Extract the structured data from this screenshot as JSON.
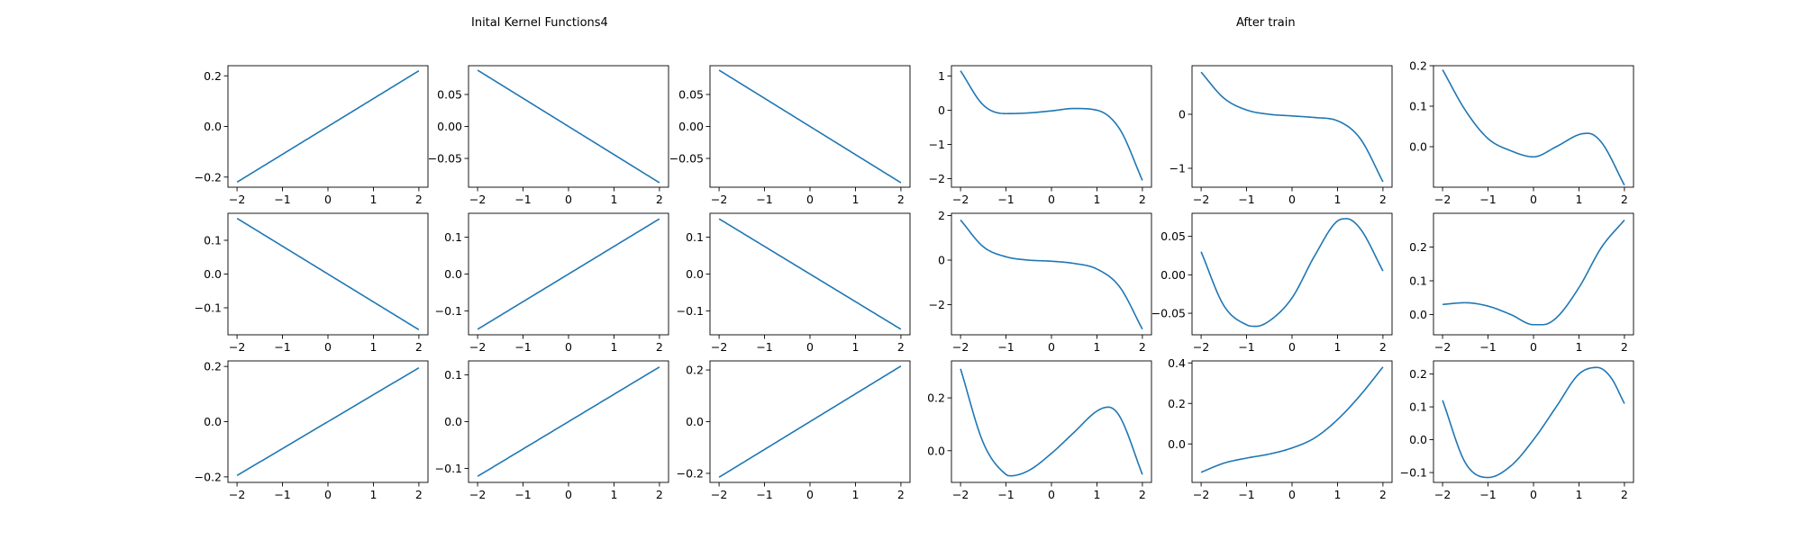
{
  "figure": {
    "titles": [
      "Inital Kernel Functions4",
      "After train"
    ],
    "line_color": "#1f77b4"
  },
  "chart_data": [
    {
      "type": "line",
      "x_range": [
        -2,
        2
      ],
      "ylim": [
        -0.24,
        0.24
      ],
      "yticks": [
        -0.2,
        0.0,
        0.2
      ],
      "ytick_labels": [
        "−0.2",
        "0.0",
        "0.2"
      ],
      "xticks": [
        -2,
        -1,
        0,
        1,
        2
      ],
      "xtick_labels": [
        "−2",
        "−1",
        "0",
        "1",
        "2"
      ],
      "series": [
        {
          "x": [
            -2,
            2
          ],
          "y": [
            -0.22,
            0.22
          ]
        }
      ]
    },
    {
      "type": "line",
      "x_range": [
        -2,
        2
      ],
      "ylim": [
        -0.095,
        0.095
      ],
      "yticks": [
        -0.05,
        0.0,
        0.05
      ],
      "ytick_labels": [
        "−0.05",
        "0.00",
        "0.05"
      ],
      "xticks": [
        -2,
        -1,
        0,
        1,
        2
      ],
      "xtick_labels": [
        "−2",
        "−1",
        "0",
        "1",
        "2"
      ],
      "series": [
        {
          "x": [
            -2,
            2
          ],
          "y": [
            0.088,
            -0.088
          ]
        }
      ]
    },
    {
      "type": "line",
      "x_range": [
        -2,
        2
      ],
      "ylim": [
        -0.095,
        0.095
      ],
      "yticks": [
        -0.05,
        0.0,
        0.05
      ],
      "ytick_labels": [
        "−0.05",
        "0.00",
        "0.05"
      ],
      "xticks": [
        -2,
        -1,
        0,
        1,
        2
      ],
      "xtick_labels": [
        "−2",
        "−1",
        "0",
        "1",
        "2"
      ],
      "series": [
        {
          "x": [
            -2,
            2
          ],
          "y": [
            0.088,
            -0.088
          ]
        }
      ]
    },
    {
      "type": "line",
      "x_range": [
        -2,
        2
      ],
      "ylim": [
        -2.25,
        1.3
      ],
      "yticks": [
        -2,
        -1,
        0,
        1
      ],
      "ytick_labels": [
        "−2",
        "−1",
        "0",
        "1"
      ],
      "xticks": [
        -2,
        -1,
        0,
        1,
        2
      ],
      "xtick_labels": [
        "−2",
        "−1",
        "0",
        "1",
        "2"
      ],
      "series": [
        {
          "x": [
            -2,
            -1.5,
            -1,
            -0.5,
            0,
            0.5,
            1,
            1.5,
            2
          ],
          "y": [
            1.15,
            0.15,
            -0.1,
            -0.08,
            -0.02,
            0.05,
            0.0,
            -0.55,
            -2.05
          ]
        }
      ]
    },
    {
      "type": "line",
      "x_range": [
        -2,
        2
      ],
      "ylim": [
        -1.35,
        0.9
      ],
      "yticks": [
        -1,
        0
      ],
      "ytick_labels": [
        "−1",
        "0"
      ],
      "xticks": [
        -2,
        -1,
        0,
        1,
        2
      ],
      "xtick_labels": [
        "−2",
        "−1",
        "0",
        "1",
        "2"
      ],
      "series": [
        {
          "x": [
            -2,
            -1.5,
            -1,
            -0.5,
            0,
            0.5,
            1,
            1.5,
            2
          ],
          "y": [
            0.78,
            0.3,
            0.08,
            0.0,
            -0.03,
            -0.06,
            -0.12,
            -0.45,
            -1.25
          ]
        }
      ]
    },
    {
      "type": "line",
      "x_range": [
        -2,
        2
      ],
      "ylim": [
        -0.1,
        0.2
      ],
      "yticks": [
        0.0,
        0.1,
        0.2
      ],
      "ytick_labels": [
        "0.0",
        "0.1",
        "0.2"
      ],
      "xticks": [
        -2,
        -1,
        0,
        1,
        2
      ],
      "xtick_labels": [
        "−2",
        "−1",
        "0",
        "1",
        "2"
      ],
      "series": [
        {
          "x": [
            -2,
            -1.5,
            -1,
            -0.5,
            0,
            0.5,
            1,
            1.2,
            1.5,
            2
          ],
          "y": [
            0.19,
            0.09,
            0.02,
            -0.01,
            -0.025,
            0.0,
            0.03,
            0.033,
            0.01,
            -0.095
          ]
        }
      ]
    },
    {
      "type": "line",
      "x_range": [
        -2,
        2
      ],
      "ylim": [
        -0.18,
        0.18
      ],
      "yticks": [
        -0.1,
        0.0,
        0.1
      ],
      "ytick_labels": [
        "−0.1",
        "0.0",
        "0.1"
      ],
      "xticks": [
        -2,
        -1,
        0,
        1,
        2
      ],
      "xtick_labels": [
        "−2",
        "−1",
        "0",
        "1",
        "2"
      ],
      "series": [
        {
          "x": [
            -2,
            2
          ],
          "y": [
            0.165,
            -0.165
          ]
        }
      ]
    },
    {
      "type": "line",
      "x_range": [
        -2,
        2
      ],
      "ylim": [
        -0.165,
        0.165
      ],
      "yticks": [
        -0.1,
        0.0,
        0.1
      ],
      "ytick_labels": [
        "−0.1",
        "0.0",
        "0.1"
      ],
      "xticks": [
        -2,
        -1,
        0,
        1,
        2
      ],
      "xtick_labels": [
        "−2",
        "−1",
        "0",
        "1",
        "2"
      ],
      "series": [
        {
          "x": [
            -2,
            2
          ],
          "y": [
            -0.15,
            0.15
          ]
        }
      ]
    },
    {
      "type": "line",
      "x_range": [
        -2,
        2
      ],
      "ylim": [
        -0.165,
        0.165
      ],
      "yticks": [
        -0.1,
        0.0,
        0.1
      ],
      "ytick_labels": [
        "−0.1",
        "0.0",
        "0.1"
      ],
      "xticks": [
        -2,
        -1,
        0,
        1,
        2
      ],
      "xtick_labels": [
        "−2",
        "−1",
        "0",
        "1",
        "2"
      ],
      "series": [
        {
          "x": [
            -2,
            2
          ],
          "y": [
            0.15,
            -0.15
          ]
        }
      ]
    },
    {
      "type": "line",
      "x_range": [
        -2,
        2
      ],
      "ylim": [
        -3.35,
        2.1
      ],
      "yticks": [
        -2,
        0,
        2
      ],
      "ytick_labels": [
        "−2",
        "0",
        "2"
      ],
      "xticks": [
        -2,
        -1,
        0,
        1,
        2
      ],
      "xtick_labels": [
        "−2",
        "−1",
        "0",
        "1",
        "2"
      ],
      "series": [
        {
          "x": [
            -2,
            -1.5,
            -1,
            -0.5,
            0,
            0.5,
            1,
            1.5,
            2
          ],
          "y": [
            1.8,
            0.6,
            0.15,
            0.0,
            -0.05,
            -0.15,
            -0.4,
            -1.2,
            -3.1
          ]
        }
      ]
    },
    {
      "type": "line",
      "x_range": [
        -2,
        2
      ],
      "ylim": [
        -0.078,
        0.08
      ],
      "yticks": [
        -0.05,
        0.0,
        0.05
      ],
      "ytick_labels": [
        "−0.05",
        "0.00",
        "0.05"
      ],
      "xticks": [
        -2,
        -1,
        0,
        1,
        2
      ],
      "xtick_labels": [
        "−2",
        "−1",
        "0",
        "1",
        "2"
      ],
      "series": [
        {
          "x": [
            -2,
            -1.5,
            -1,
            -0.8,
            -0.5,
            0,
            0.5,
            1,
            1.2,
            1.5,
            2
          ],
          "y": [
            0.03,
            -0.04,
            -0.065,
            -0.067,
            -0.06,
            -0.03,
            0.025,
            0.07,
            0.073,
            0.06,
            0.005
          ]
        }
      ]
    },
    {
      "type": "line",
      "x_range": [
        -2,
        2
      ],
      "ylim": [
        -0.06,
        0.3
      ],
      "yticks": [
        0.0,
        0.1,
        0.2
      ],
      "ytick_labels": [
        "0.0",
        "0.1",
        "0.2"
      ],
      "xticks": [
        -2,
        -1,
        0,
        1,
        2
      ],
      "xtick_labels": [
        "−2",
        "−1",
        "0",
        "1",
        "2"
      ],
      "series": [
        {
          "x": [
            -2,
            -1.5,
            -1,
            -0.5,
            0,
            0.2,
            0.5,
            1,
            1.5,
            2
          ],
          "y": [
            0.03,
            0.035,
            0.025,
            0.0,
            -0.03,
            -0.03,
            -0.01,
            0.08,
            0.2,
            0.28
          ]
        }
      ]
    },
    {
      "type": "line",
      "x_range": [
        -2,
        2
      ],
      "ylim": [
        -0.22,
        0.22
      ],
      "yticks": [
        -0.2,
        0.0,
        0.2
      ],
      "ytick_labels": [
        "−0.2",
        "0.0",
        "0.2"
      ],
      "xticks": [
        -2,
        -1,
        0,
        1,
        2
      ],
      "xtick_labels": [
        "−2",
        "−1",
        "0",
        "1",
        "2"
      ],
      "series": [
        {
          "x": [
            -2,
            2
          ],
          "y": [
            -0.195,
            0.195
          ]
        }
      ]
    },
    {
      "type": "line",
      "x_range": [
        -2,
        2
      ],
      "ylim": [
        -0.13,
        0.13
      ],
      "yticks": [
        -0.1,
        0.0,
        0.1
      ],
      "ytick_labels": [
        "−0.1",
        "0.0",
        "0.1"
      ],
      "xticks": [
        -2,
        -1,
        0,
        1,
        2
      ],
      "xtick_labels": [
        "−2",
        "−1",
        "0",
        "1",
        "2"
      ],
      "series": [
        {
          "x": [
            -2,
            2
          ],
          "y": [
            -0.117,
            0.117
          ]
        }
      ]
    },
    {
      "type": "line",
      "x_range": [
        -2,
        2
      ],
      "ylim": [
        -0.235,
        0.235
      ],
      "yticks": [
        -0.2,
        0.0,
        0.2
      ],
      "ytick_labels": [
        "−0.2",
        "0.0",
        "0.2"
      ],
      "xticks": [
        -2,
        -1,
        0,
        1,
        2
      ],
      "xtick_labels": [
        "−2",
        "−1",
        "0",
        "1",
        "2"
      ],
      "series": [
        {
          "x": [
            -2,
            2
          ],
          "y": [
            -0.215,
            0.215
          ]
        }
      ]
    },
    {
      "type": "line",
      "x_range": [
        -2,
        2
      ],
      "ylim": [
        -0.12,
        0.34
      ],
      "yticks": [
        0.0,
        0.2
      ],
      "ytick_labels": [
        "0.0",
        "0.2"
      ],
      "xticks": [
        -2,
        -1,
        0,
        1,
        2
      ],
      "xtick_labels": [
        "−2",
        "−1",
        "0",
        "1",
        "2"
      ],
      "series": [
        {
          "x": [
            -2,
            -1.5,
            -1,
            -0.9,
            -0.5,
            0,
            0.5,
            1,
            1.25,
            1.5,
            2
          ],
          "y": [
            0.31,
            0.03,
            -0.09,
            -0.095,
            -0.075,
            -0.01,
            0.07,
            0.15,
            0.165,
            0.13,
            -0.09
          ]
        }
      ]
    },
    {
      "type": "line",
      "x_range": [
        -2,
        2
      ],
      "ylim": [
        -0.19,
        0.41
      ],
      "yticks": [
        0.0,
        0.2,
        0.4
      ],
      "ytick_labels": [
        "0.0",
        "0.2",
        "0.4"
      ],
      "xticks": [
        -2,
        -1,
        0,
        1,
        2
      ],
      "xtick_labels": [
        "−2",
        "−1",
        "0",
        "1",
        "2"
      ],
      "series": [
        {
          "x": [
            -2,
            -1.5,
            -1,
            -0.5,
            0,
            0.5,
            1,
            1.5,
            2
          ],
          "y": [
            -0.14,
            -0.095,
            -0.07,
            -0.05,
            -0.02,
            0.03,
            0.12,
            0.24,
            0.38
          ]
        }
      ]
    },
    {
      "type": "line",
      "x_range": [
        -2,
        2
      ],
      "ylim": [
        -0.13,
        0.24
      ],
      "yticks": [
        -0.1,
        0.0,
        0.1,
        0.2
      ],
      "ytick_labels": [
        "−0.1",
        "0.0",
        "0.1",
        "0.2"
      ],
      "xticks": [
        -2,
        -1,
        0,
        1,
        2
      ],
      "xtick_labels": [
        "−2",
        "−1",
        "0",
        "1",
        "2"
      ],
      "series": [
        {
          "x": [
            -2,
            -1.5,
            -1,
            -0.5,
            0,
            0.5,
            1,
            1.4,
            1.7,
            2
          ],
          "y": [
            0.12,
            -0.07,
            -0.115,
            -0.08,
            0.0,
            0.1,
            0.2,
            0.22,
            0.19,
            0.11
          ]
        }
      ]
    }
  ]
}
